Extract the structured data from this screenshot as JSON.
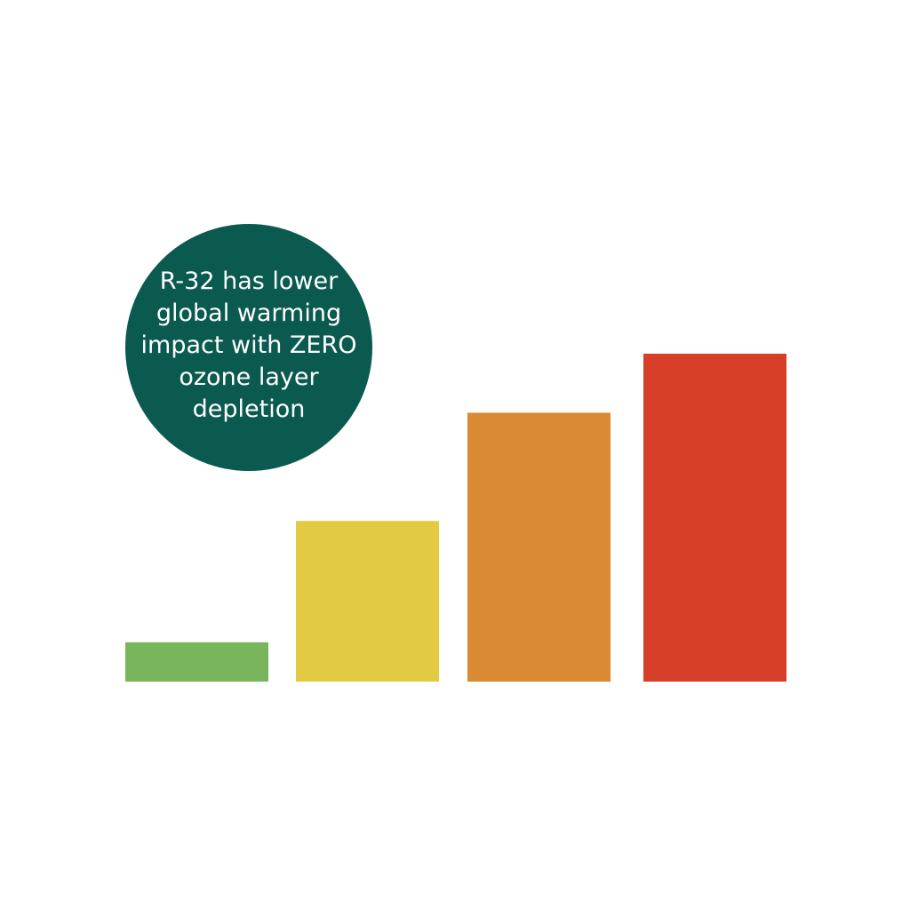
{
  "callout": {
    "lines": [
      "R-32 has lower",
      "global warming",
      "impact with ZERO",
      "ozone layer",
      "depletion"
    ],
    "color": "#0b5a50"
  },
  "chart_data": {
    "type": "bar",
    "title": "",
    "xlabel": "",
    "ylabel": "",
    "categories": [
      "",
      "",
      "",
      ""
    ],
    "values": [
      12,
      49,
      82,
      100
    ],
    "ylim": [
      0,
      100
    ],
    "colors": [
      "#79b65b",
      "#e2ca43",
      "#d98a32",
      "#d63e28"
    ],
    "grid": false,
    "legend": "none"
  }
}
